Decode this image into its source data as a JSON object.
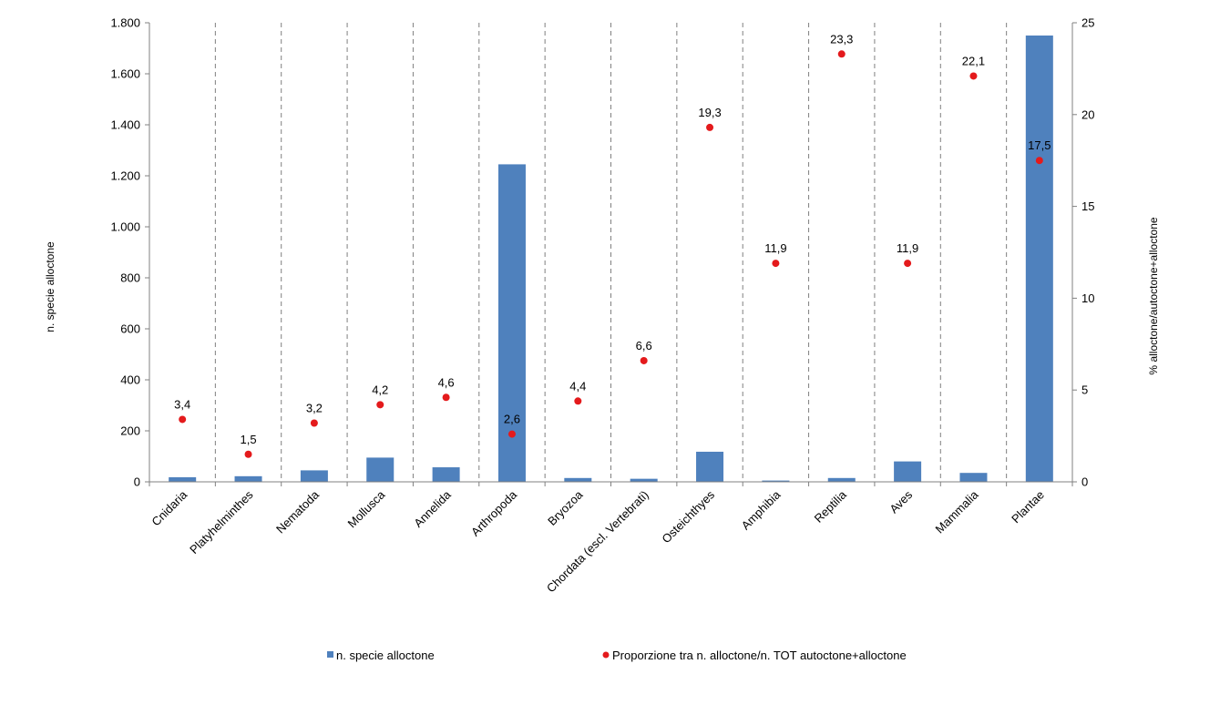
{
  "chart_data": {
    "type": "bar",
    "categories": [
      "Cnidaria",
      "Platyhelminthes",
      "Nematoda",
      "Mollusca",
      "Annelida",
      "Arthropoda",
      "Bryozoa",
      "Chordata (escl. Vertebrati)",
      "Osteichthyes",
      "Amphibia",
      "Reptilia",
      "Aves",
      "Mammalia",
      "Plantae"
    ],
    "series": [
      {
        "name": "n. specie alloctone",
        "type": "bar",
        "axis": "left",
        "color": "#4F81BD",
        "values": [
          18,
          22,
          45,
          95,
          57,
          1245,
          15,
          12,
          118,
          5,
          15,
          80,
          35,
          1750
        ]
      },
      {
        "name": "Proporzione tra n. alloctone/n. TOT autoctone+alloctone",
        "type": "scatter",
        "axis": "right",
        "color": "#E41A1C",
        "values": [
          3.4,
          1.5,
          3.2,
          4.2,
          4.6,
          2.6,
          4.4,
          6.6,
          19.3,
          11.9,
          23.3,
          11.9,
          22.1,
          17.5
        ],
        "labels": [
          "3,4",
          "1,5",
          "3,2",
          "4,2",
          "4,6",
          "2,6",
          "4,4",
          "6,6",
          "19,3",
          "11,9",
          "23,3",
          "11,9",
          "22,1",
          "17,5"
        ]
      }
    ],
    "y_left": {
      "label": "n. specie alloctone",
      "range": [
        0,
        1800
      ],
      "ticks": [
        0,
        200,
        400,
        600,
        800,
        1000,
        1200,
        1400,
        1600,
        1800
      ],
      "tick_labels": [
        "0",
        "200",
        "400",
        "600",
        "800",
        "1.000",
        "1.200",
        "1.400",
        "1.600",
        "1.800"
      ]
    },
    "y_right": {
      "label": "% alloctone/autoctone+alloctone",
      "range": [
        0,
        25
      ],
      "ticks": [
        0,
        5,
        10,
        15,
        20,
        25
      ],
      "tick_labels": [
        "0",
        "5",
        "10",
        "15",
        "20",
        "25"
      ]
    },
    "xlabel": "",
    "grid": "vertical dashed separators between categories",
    "legend_position": "bottom"
  }
}
